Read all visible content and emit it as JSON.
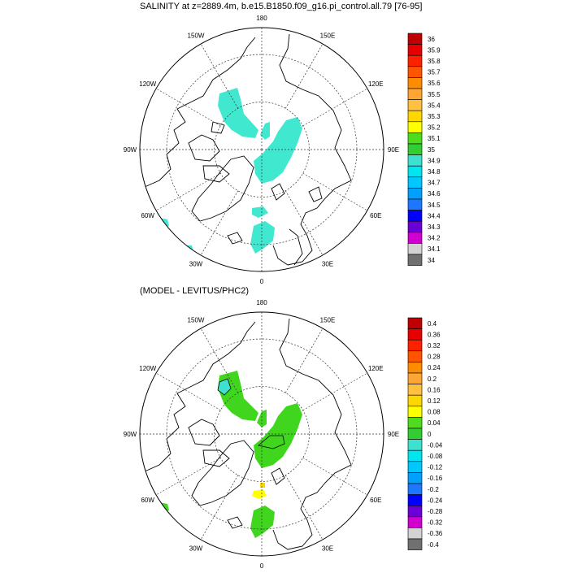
{
  "maps": [
    {
      "title": "SALINITY at z=2889.4m, b.e15.B1850.f09_g16.pi_control.all.79 [76-95]",
      "lon_labels": [
        "180",
        "150E",
        "120E",
        "90E",
        "60E",
        "30E",
        "0",
        "30W",
        "60W",
        "90W",
        "120W",
        "150W"
      ],
      "colorbar": {
        "levels": [
          "36",
          "35.9",
          "35.8",
          "35.7",
          "35.6",
          "35.5",
          "35.4",
          "35.3",
          "35.2",
          "35.1",
          "35",
          "34.9",
          "34.8",
          "34.7",
          "34.6",
          "34.5",
          "34.4",
          "34.3",
          "34.2",
          "34.1",
          "34"
        ],
        "colors": [
          "#c00000",
          "#e80000",
          "#ff2000",
          "#ff5500",
          "#ff8c00",
          "#ffa533",
          "#ffbf40",
          "#ffd700",
          "#ffff00",
          "#50dc1e",
          "#32cd32",
          "#40e0d0",
          "#00e5ee",
          "#00c8ff",
          "#00a0ff",
          "#1e78ff",
          "#0000ff",
          "#6a00d5",
          "#d000d0",
          "#d3d3d3",
          "#707070"
        ]
      },
      "field_color": "#40e8d0"
    },
    {
      "title": "(MODEL - LEVITUS/PHC2)",
      "lon_labels": [
        "180",
        "150E",
        "120E",
        "90E",
        "60E",
        "30E",
        "0",
        "30W",
        "60W",
        "90W",
        "120W",
        "150W"
      ],
      "colorbar": {
        "levels": [
          "0.4",
          "0.36",
          "0.32",
          "0.28",
          "0.24",
          "0.2",
          "0.16",
          "0.12",
          "0.08",
          "0.04",
          "0",
          "-0.04",
          "-0.08",
          "-0.12",
          "-0.16",
          "-0.2",
          "-0.24",
          "-0.28",
          "-0.32",
          "-0.36",
          "-0.4"
        ],
        "colors": [
          "#c00000",
          "#e80000",
          "#ff2000",
          "#ff5500",
          "#ff8c00",
          "#ffa533",
          "#ffbf40",
          "#ffd700",
          "#ffff00",
          "#50dc1e",
          "#32cd32",
          "#40e0d0",
          "#00e5ee",
          "#00c8ff",
          "#00a0ff",
          "#1e78ff",
          "#0000ff",
          "#6a00d5",
          "#d000d0",
          "#d3d3d3",
          "#707070"
        ]
      },
      "field_color": "#40d61e",
      "accent_colors": {
        "positive_small": "#ffff00",
        "negative_small": "#40e0d0"
      }
    }
  ]
}
